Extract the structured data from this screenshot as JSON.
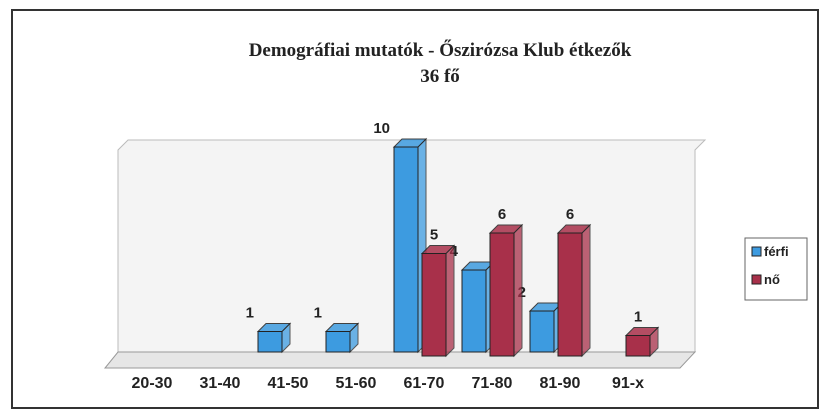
{
  "chart_data": {
    "type": "bar3d",
    "title": "Demográfiai mutatók - Őszirózsa Klub étkezők",
    "subtitle": "36 fő",
    "categories": [
      "20-30",
      "31-40",
      "41-50",
      "51-60",
      "61-70",
      "71-80",
      "81-90",
      "91-x"
    ],
    "series": [
      {
        "name": "férfi",
        "color": "#3d9be0",
        "values": [
          null,
          null,
          1,
          1,
          10,
          4,
          2,
          null
        ]
      },
      {
        "name": "nő",
        "color": "#a8304a",
        "values": [
          null,
          null,
          null,
          null,
          5,
          6,
          6,
          1
        ]
      }
    ],
    "legend": "right"
  }
}
